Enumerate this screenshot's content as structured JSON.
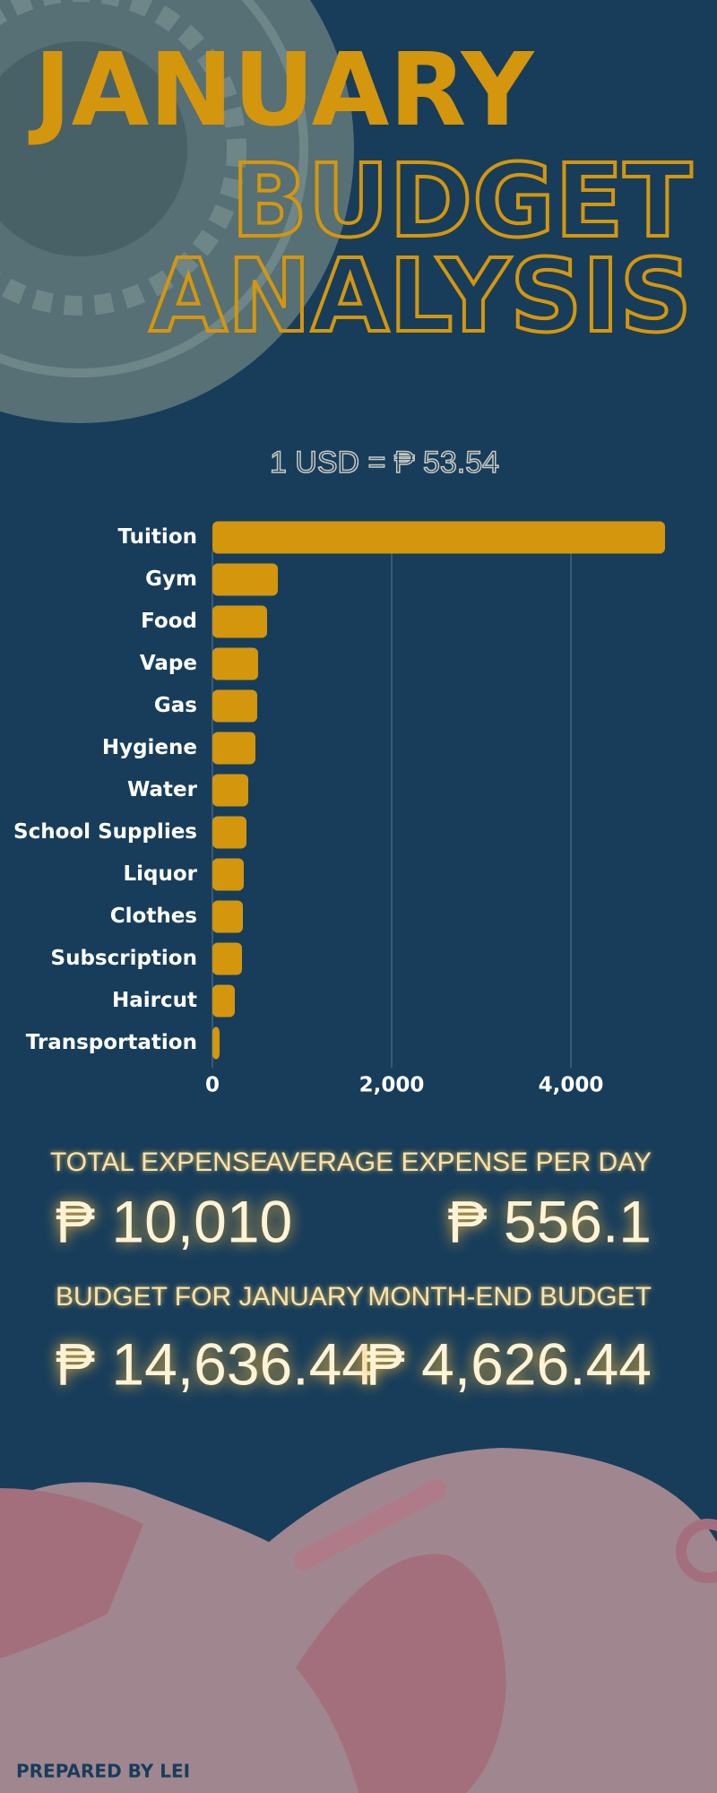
{
  "header": {
    "title": "JANUARY",
    "subtitle_line1": "BUDGET",
    "subtitle_line2": "ANALYSIS"
  },
  "exchange_rate": "1 USD = ₱ 53.54",
  "chart_data": {
    "type": "bar",
    "orientation": "horizontal",
    "categories": [
      "Tuition",
      "Gym",
      "Food",
      "Vape",
      "Gas",
      "Hygiene",
      "Water",
      "School Supplies",
      "Liquor",
      "Clothes",
      "Subscription",
      "Haircut",
      "Transportation"
    ],
    "values": [
      5050,
      730,
      610,
      510,
      500,
      480,
      400,
      380,
      350,
      340,
      330,
      250,
      80
    ],
    "color": "#d4960c",
    "xlim": [
      0,
      5200
    ],
    "xticks": [
      0,
      {
        "value": 2000,
        "label": "2,000"
      },
      {
        "value": 4000,
        "label": "4,000"
      }
    ],
    "grid": true
  },
  "stats": [
    {
      "label": "TOTAL EXPENSE",
      "value": "₱ 10,010"
    },
    {
      "label": "AVERAGE EXPENSE PER DAY",
      "value": "₱ 556.1"
    },
    {
      "label": "BUDGET FOR JANUARY",
      "value": "₱ 14,636.44"
    },
    {
      "label": "MONTH-END BUDGET",
      "value": "₱ 4,626.44"
    }
  ],
  "footer": "PREPARED BY LEI"
}
